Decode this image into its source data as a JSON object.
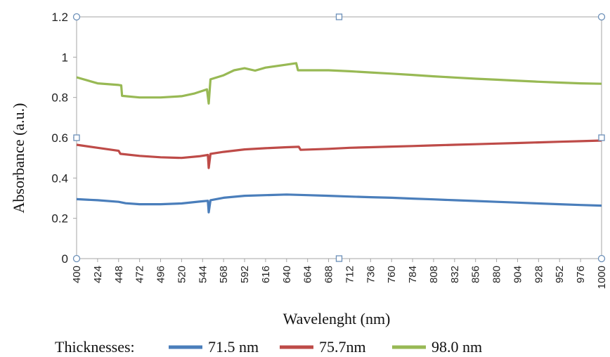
{
  "chart_data": {
    "type": "line",
    "xlabel": "Wavelenght (nm)",
    "ylabel": "Absorbance (a.u.)",
    "xlim": [
      400,
      1000
    ],
    "ylim": [
      0,
      1.2
    ],
    "x_ticks": [
      "400",
      "424",
      "448",
      "472",
      "496",
      "520",
      "544",
      "568",
      "592",
      "616",
      "640",
      "664",
      "688",
      "712",
      "736",
      "760",
      "784",
      "808",
      "832",
      "856",
      "880",
      "904",
      "928",
      "952",
      "976",
      "1000"
    ],
    "y_ticks": [
      "0",
      "0.2",
      "0.4",
      "0.6",
      "0.8",
      "1",
      "1.2"
    ],
    "grid": false,
    "legend": {
      "position": "bottom",
      "label": "Thicknesses:"
    },
    "series": [
      {
        "name": "71.5 nm",
        "color": "#4a7ebb",
        "points": [
          [
            400,
            0.295
          ],
          [
            424,
            0.29
          ],
          [
            448,
            0.282
          ],
          [
            456,
            0.275
          ],
          [
            472,
            0.27
          ],
          [
            496,
            0.27
          ],
          [
            520,
            0.274
          ],
          [
            540,
            0.283
          ],
          [
            550,
            0.287
          ],
          [
            551,
            0.23
          ],
          [
            553,
            0.29
          ],
          [
            568,
            0.302
          ],
          [
            592,
            0.312
          ],
          [
            616,
            0.315
          ],
          [
            640,
            0.318
          ],
          [
            664,
            0.315
          ],
          [
            688,
            0.312
          ],
          [
            712,
            0.308
          ],
          [
            736,
            0.305
          ],
          [
            760,
            0.302
          ],
          [
            784,
            0.298
          ],
          [
            808,
            0.294
          ],
          [
            832,
            0.29
          ],
          [
            856,
            0.286
          ],
          [
            880,
            0.282
          ],
          [
            904,
            0.278
          ],
          [
            928,
            0.274
          ],
          [
            952,
            0.27
          ],
          [
            976,
            0.266
          ],
          [
            1000,
            0.263
          ]
        ]
      },
      {
        "name": "75.7nm",
        "color": "#be4b48",
        "points": [
          [
            400,
            0.565
          ],
          [
            424,
            0.55
          ],
          [
            448,
            0.535
          ],
          [
            450,
            0.52
          ],
          [
            472,
            0.51
          ],
          [
            496,
            0.503
          ],
          [
            520,
            0.5
          ],
          [
            540,
            0.508
          ],
          [
            550,
            0.515
          ],
          [
            551,
            0.45
          ],
          [
            553,
            0.52
          ],
          [
            568,
            0.53
          ],
          [
            592,
            0.542
          ],
          [
            616,
            0.548
          ],
          [
            640,
            0.553
          ],
          [
            654,
            0.555
          ],
          [
            656,
            0.54
          ],
          [
            688,
            0.545
          ],
          [
            712,
            0.55
          ],
          [
            736,
            0.553
          ],
          [
            760,
            0.556
          ],
          [
            784,
            0.559
          ],
          [
            808,
            0.562
          ],
          [
            832,
            0.565
          ],
          [
            856,
            0.568
          ],
          [
            880,
            0.571
          ],
          [
            904,
            0.574
          ],
          [
            928,
            0.577
          ],
          [
            952,
            0.58
          ],
          [
            976,
            0.583
          ],
          [
            1000,
            0.586
          ]
        ]
      },
      {
        "name": "98.0 nm",
        "color": "#98b954",
        "points": [
          [
            400,
            0.9
          ],
          [
            424,
            0.87
          ],
          [
            448,
            0.862
          ],
          [
            451,
            0.86
          ],
          [
            452,
            0.808
          ],
          [
            472,
            0.8
          ],
          [
            496,
            0.8
          ],
          [
            520,
            0.806
          ],
          [
            535,
            0.82
          ],
          [
            549,
            0.84
          ],
          [
            551,
            0.77
          ],
          [
            553,
            0.89
          ],
          [
            568,
            0.91
          ],
          [
            580,
            0.935
          ],
          [
            592,
            0.945
          ],
          [
            604,
            0.933
          ],
          [
            616,
            0.948
          ],
          [
            640,
            0.963
          ],
          [
            651,
            0.97
          ],
          [
            653,
            0.935
          ],
          [
            664,
            0.935
          ],
          [
            688,
            0.935
          ],
          [
            712,
            0.93
          ],
          [
            736,
            0.924
          ],
          [
            760,
            0.918
          ],
          [
            784,
            0.912
          ],
          [
            808,
            0.905
          ],
          [
            832,
            0.899
          ],
          [
            856,
            0.893
          ],
          [
            880,
            0.888
          ],
          [
            904,
            0.883
          ],
          [
            928,
            0.878
          ],
          [
            952,
            0.874
          ],
          [
            976,
            0.87
          ],
          [
            1000,
            0.868
          ]
        ]
      }
    ]
  }
}
